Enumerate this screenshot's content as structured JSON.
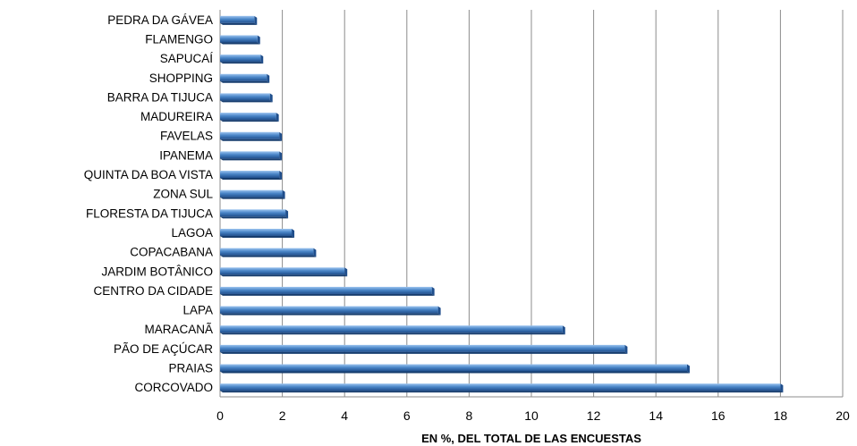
{
  "chart_data": {
    "type": "bar",
    "orientation": "horizontal",
    "categories": [
      "PEDRA DA GÁVEA",
      "FLAMENGO",
      "SAPUCAÍ",
      "SHOPPING",
      "BARRA DA TIJUCA",
      "MADUREIRA",
      "FAVELAS",
      "IPANEMA",
      "QUINTA DA BOA VISTA",
      "ZONA SUL",
      "FLORESTA DA TIJUCA",
      "LAGOA",
      "COPACABANA",
      "JARDIM BOTÂNICO",
      "CENTRO DA CIDADE",
      "LAPA",
      "MARACANÃ",
      "PÃO DE AÇÚCAR",
      "PRAIAS",
      "CORCOVADO"
    ],
    "values": [
      1.1,
      1.2,
      1.3,
      1.5,
      1.6,
      1.8,
      1.9,
      1.9,
      1.9,
      2.0,
      2.1,
      2.3,
      3.0,
      4.0,
      6.8,
      7.0,
      11.0,
      13.0,
      15.0,
      18.0
    ],
    "xlim": [
      0,
      20
    ],
    "xticks": [
      "0",
      "2",
      "4",
      "6",
      "8",
      "10",
      "12",
      "14",
      "16",
      "18",
      "20"
    ],
    "xlabel": "EN %, DEL TOTAL DE LAS ENCUESTAS",
    "ylabel": "",
    "title": "",
    "grid": "vertical",
    "legend": "none",
    "bar_color": "#4a86c8",
    "bar_color_dark": "#1f4e8c",
    "bar_color_light": "#9cc4ef"
  }
}
